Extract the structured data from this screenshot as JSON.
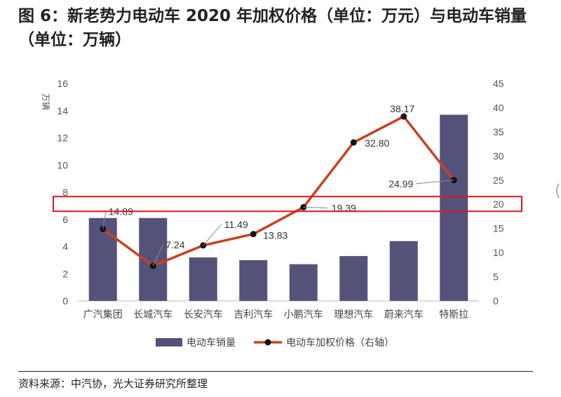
{
  "header": {
    "title": "图 6：新老势力电动车 2020 年加权价格（单位：万元）与电动车销量（单位：万辆）"
  },
  "footer": {
    "source": "资料来源：中汽协，光大证券研究所整理"
  },
  "colors": {
    "bar": "#55527a",
    "line": "#c8411f",
    "marker": "#111111",
    "highlight": "#e0141e"
  },
  "chart_data": {
    "type": "bar",
    "categories": [
      "广汽集团",
      "长城汽车",
      "长安汽车",
      "吉利汽车",
      "小鹏汽车",
      "理想汽车",
      "蔚来汽车",
      "特斯拉"
    ],
    "series": [
      {
        "name": "电动车销量",
        "type": "bar",
        "axis": "left",
        "values": [
          6.1,
          6.1,
          3.2,
          3.0,
          2.7,
          3.3,
          4.4,
          13.7
        ]
      },
      {
        "name": "电动车加权价格（右轴）",
        "type": "line",
        "axis": "right",
        "values": [
          14.89,
          7.24,
          11.49,
          13.83,
          19.39,
          32.8,
          38.17,
          24.99
        ],
        "labels": [
          "14.89",
          "7.24",
          "11.49",
          "13.83",
          "19.39",
          "32.80",
          "38.17",
          "24.99"
        ]
      }
    ],
    "y_left": {
      "label": "万辆",
      "range": [
        0,
        16
      ],
      "ticks": [
        "0",
        "2",
        "4",
        "6",
        "8",
        "10",
        "12",
        "14",
        "16"
      ]
    },
    "y_right": {
      "range": [
        0,
        45
      ],
      "ticks": [
        "0",
        "5",
        "10",
        "15",
        "20",
        "25",
        "30",
        "35",
        "40",
        "45"
      ]
    },
    "grid": false,
    "legend_position": "bottom",
    "annotation": "red box highlighting the 20 level on the right axis"
  }
}
